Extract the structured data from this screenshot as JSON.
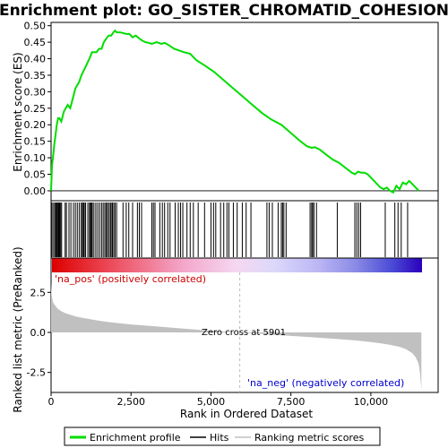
{
  "chart_data": [
    {
      "type": "line",
      "panel": "enrichment-profile",
      "title": "Enrichment plot: GO_SISTER_CHROMATID_COHESION",
      "ylabel": "Enrichment score (ES)",
      "xlim": [
        0,
        11600
      ],
      "ylim": [
        -0.03,
        0.51
      ],
      "yticks": [
        "0.00",
        "0.05",
        "0.10",
        "0.15",
        "0.20",
        "0.25",
        "0.30",
        "0.35",
        "0.40",
        "0.45",
        "0.50"
      ],
      "ytick_values": [
        0.0,
        0.05,
        0.1,
        0.15,
        0.2,
        0.25,
        0.3,
        0.35,
        0.4,
        0.45,
        0.5
      ],
      "line_color": "#00dd00",
      "series": [
        {
          "name": "Enrichment profile",
          "x": [
            0,
            30,
            60,
            100,
            140,
            180,
            220,
            260,
            320,
            400,
            460,
            520,
            600,
            680,
            760,
            820,
            880,
            950,
            1000,
            1050,
            1100,
            1150,
            1200,
            1280,
            1350,
            1420,
            1500,
            1580,
            1650,
            1720,
            1800,
            1880,
            1950,
            2000,
            2050,
            2150,
            2250,
            2350,
            2450,
            2550,
            2650,
            2750,
            2850,
            2950,
            3050,
            3150,
            3300,
            3450,
            3550,
            3700,
            3850,
            4000,
            4150,
            4350,
            4550,
            4800,
            5100,
            5400,
            5700,
            6000,
            6300,
            6600,
            6900,
            7200,
            7500,
            7800,
            8000,
            8150,
            8250,
            8400,
            8600,
            8800,
            9000,
            9200,
            9400,
            9500,
            9600,
            9700,
            9800,
            9900,
            10000,
            10100,
            10200,
            10300,
            10400,
            10500,
            10600,
            10700,
            10800,
            10900,
            11000,
            11100,
            11200,
            11300,
            11400,
            11500
          ],
          "y": [
            0.0,
            0.08,
            0.1,
            0.14,
            0.17,
            0.2,
            0.22,
            0.22,
            0.21,
            0.24,
            0.25,
            0.26,
            0.25,
            0.28,
            0.31,
            0.32,
            0.33,
            0.35,
            0.36,
            0.37,
            0.38,
            0.39,
            0.4,
            0.42,
            0.42,
            0.42,
            0.43,
            0.43,
            0.45,
            0.46,
            0.47,
            0.47,
            0.48,
            0.485,
            0.48,
            0.48,
            0.478,
            0.475,
            0.475,
            0.465,
            0.47,
            0.462,
            0.455,
            0.45,
            0.448,
            0.445,
            0.45,
            0.445,
            0.448,
            0.44,
            0.43,
            0.425,
            0.42,
            0.415,
            0.395,
            0.38,
            0.36,
            0.335,
            0.31,
            0.285,
            0.26,
            0.235,
            0.215,
            0.2,
            0.175,
            0.15,
            0.135,
            0.13,
            0.132,
            0.125,
            0.11,
            0.095,
            0.085,
            0.07,
            0.055,
            0.05,
            0.058,
            0.055,
            0.055,
            0.05,
            0.04,
            0.03,
            0.02,
            0.01,
            0.005,
            0.01,
            0.0,
            -0.005,
            0.015,
            0.005,
            0.025,
            0.02,
            0.03,
            0.02,
            0.01,
            0.0
          ]
        }
      ]
    },
    {
      "type": "barcode",
      "panel": "hits",
      "legend_name": "Hits",
      "xlim": [
        0,
        11600
      ],
      "hit_positions": [
        30,
        80,
        120,
        150,
        180,
        200,
        230,
        250,
        270,
        300,
        330,
        440,
        480,
        560,
        620,
        700,
        760,
        820,
        880,
        940,
        980,
        1010,
        1040,
        1080,
        1150,
        1200,
        1230,
        1260,
        1290,
        1340,
        1400,
        1460,
        1520,
        1580,
        1630,
        1680,
        1720,
        1760,
        1800,
        1850,
        1880,
        1920,
        1960,
        2000,
        2050,
        2250,
        2350,
        2430,
        2550,
        2700,
        2760,
        2830,
        3150,
        3200,
        3250,
        3400,
        3480,
        3550,
        3650,
        3720,
        3880,
        3980,
        4050,
        4120,
        4250,
        4350,
        4450,
        4600,
        4800,
        5000,
        5080,
        5150,
        5300,
        5400,
        5500,
        5560,
        5700,
        5820,
        5980,
        6100,
        6250,
        6750,
        6820,
        6920,
        7100,
        7200,
        7240,
        7280,
        7350,
        8100,
        8150,
        8180,
        8220,
        8300,
        8950,
        9500,
        9560,
        9620,
        9680,
        10450,
        10750,
        10850,
        10950,
        11150
      ]
    },
    {
      "type": "area",
      "panel": "ranked-list-metric",
      "ylabel": "Ranked list metric (PreRanked)",
      "xlabel": "Rank in Ordered Dataset",
      "xlim": [
        0,
        11600
      ],
      "ylim": [
        -3.75,
        3.75
      ],
      "xticks": [
        "0",
        "2,500",
        "5,000",
        "7,500",
        "10,000"
      ],
      "xtick_values": [
        0,
        2500,
        5000,
        7500,
        10000
      ],
      "yticks": [
        "2.5",
        "0.0",
        "-2.5"
      ],
      "ytick_values": [
        2.5,
        0.0,
        -2.5
      ],
      "fill_color": "#c0c0c0",
      "series": [
        {
          "name": "Ranking metric scores",
          "x": [
            0,
            20,
            60,
            120,
            200,
            300,
            450,
            600,
            800,
            1000,
            1300,
            1600,
            2000,
            2500,
            3000,
            3500,
            4000,
            4500,
            5000,
            5500,
            5901,
            6500,
            7000,
            7500,
            8000,
            8500,
            9000,
            9500,
            10000,
            10300,
            10600,
            10900,
            11100,
            11300,
            11400,
            11450,
            11500,
            11540,
            11580
          ],
          "y": [
            3.1,
            2.3,
            1.9,
            1.7,
            1.5,
            1.35,
            1.2,
            1.1,
            0.98,
            0.9,
            0.8,
            0.7,
            0.6,
            0.5,
            0.42,
            0.34,
            0.26,
            0.18,
            0.1,
            0.04,
            0.0,
            -0.08,
            -0.15,
            -0.22,
            -0.28,
            -0.35,
            -0.42,
            -0.5,
            -0.6,
            -0.68,
            -0.78,
            -0.9,
            -1.05,
            -1.3,
            -1.55,
            -1.75,
            -2.0,
            -2.6,
            -3.6
          ]
        }
      ],
      "annotations": {
        "na_pos": "'na_pos' (positively correlated)",
        "na_neg": "'na_neg' (negatively correlated)",
        "zero_cross": "Zero cross at 5901"
      },
      "zero_cross_rank": 5901
    }
  ],
  "legend": {
    "items": [
      {
        "label": "Enrichment profile",
        "color": "#00dd00"
      },
      {
        "label": "Hits",
        "color": "#000000"
      },
      {
        "label": "Ranking metric scores",
        "color": "#c0c0c0"
      }
    ]
  }
}
